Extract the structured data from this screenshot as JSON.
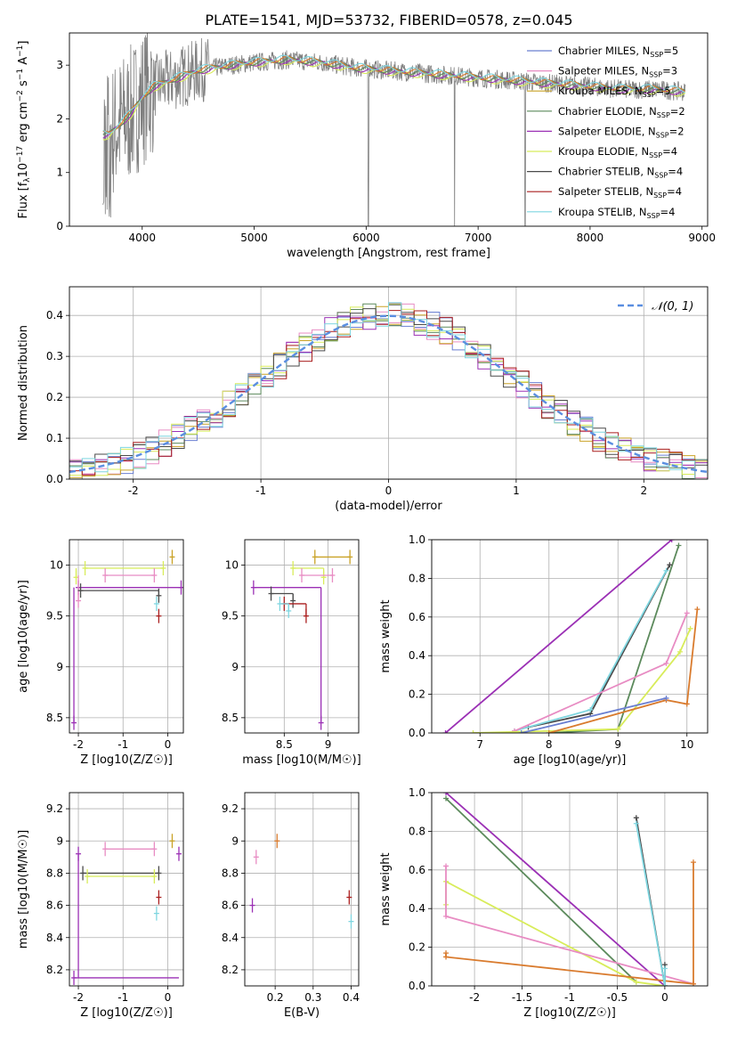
{
  "figure_title": "PLATE=1541, MJD=53732, FIBERID=0578, z=0.045",
  "model_colors": {
    "Chabrier MILES": "#6a7fd1",
    "Salpeter MILES": "#e88cc3",
    "Kroupa MILES": "#c9a227",
    "Chabrier ELODIE": "#5c8a5c",
    "Salpeter ELODIE": "#9b30b5",
    "Kroupa ELODIE": "#d8ec5a",
    "Chabrier STELIB": "#4a4a4a",
    "Salpeter STELIB": "#aa1f1f",
    "Kroupa STELIB": "#7fd6e0",
    "Kroupa MILES line": "#d97b2e"
  },
  "chart_data": [
    {
      "id": "spectrum",
      "type": "line",
      "xlabel": "wavelength [Angstrom, rest frame]",
      "xlim": [
        3350,
        9050
      ],
      "ylim": [
        0,
        3.6
      ],
      "xticks": [
        4000,
        5000,
        6000,
        7000,
        8000,
        9000
      ],
      "yticks": [
        0,
        1,
        2,
        3
      ],
      "grid": false,
      "legend_placement": "top-right",
      "data_color": "#808080",
      "continuum": {
        "x": [
          3650,
          3700,
          3800,
          3900,
          4000,
          4100,
          4300,
          4500,
          4800,
          5000,
          5300,
          5600,
          5900,
          6200,
          6500,
          6800,
          7100,
          7400,
          7700,
          8000,
          8300,
          8600,
          8850
        ],
        "y": [
          1.7,
          1.7,
          1.9,
          2.1,
          2.4,
          2.6,
          2.75,
          2.9,
          3.0,
          3.05,
          3.1,
          3.05,
          2.95,
          2.9,
          2.85,
          2.8,
          2.75,
          2.7,
          2.65,
          2.6,
          2.55,
          2.55,
          2.5
        ]
      },
      "legend": [
        {
          "name": "Chabrier MILES",
          "ssp": "5"
        },
        {
          "name": "Salpeter MILES",
          "ssp": "3"
        },
        {
          "name": "Kroupa MILES",
          "ssp": "5"
        },
        {
          "name": "Chabrier ELODIE",
          "ssp": "2"
        },
        {
          "name": "Salpeter ELODIE",
          "ssp": "2"
        },
        {
          "name": "Kroupa ELODIE",
          "ssp": "4"
        },
        {
          "name": "Chabrier STELIB",
          "ssp": "4"
        },
        {
          "name": "Salpeter STELIB",
          "ssp": "4"
        },
        {
          "name": "Kroupa STELIB",
          "ssp": "4"
        }
      ]
    },
    {
      "id": "residuals",
      "type": "line",
      "xlabel": "(data-model)/error",
      "ylabel": "Normed distribution",
      "xlim": [
        -2.5,
        2.5
      ],
      "ylim": [
        0,
        0.47
      ],
      "xticks": [
        -2,
        -1,
        0,
        1,
        2
      ],
      "yticks": [
        0.0,
        0.1,
        0.2,
        0.3,
        0.4
      ],
      "grid": true,
      "legend_placement": "top-right",
      "gaussian_label": "𝒩(0, 1)",
      "gaussian_color": "#5a8ee0",
      "bin_width": 0.1
    },
    {
      "id": "age_vs_Z",
      "type": "scatter",
      "xlabel": "Z [log10(Z/Z☉)]",
      "ylabel": "age  [log10(age/yr)]",
      "xlim": [
        -2.2,
        0.35
      ],
      "ylim": [
        8.35,
        10.25
      ],
      "xticks": [
        -2,
        -1,
        0
      ],
      "yticks": [
        8.5,
        9.0,
        9.5,
        10.0
      ],
      "grid": true,
      "series": [
        {
          "name": "Salpeter ELODIE",
          "x": [
            -2.0,
            -2.1,
            0.3
          ],
          "y": [
            9.78,
            8.45,
            9.78
          ]
        },
        {
          "name": "Kroupa ELODIE",
          "x": [
            -1.85,
            -2.05,
            -0.1
          ],
          "y": [
            9.97,
            9.88,
            9.97
          ]
        },
        {
          "name": "Salpeter MILES",
          "x": [
            -1.4,
            -2.0,
            -0.3
          ],
          "y": [
            9.9,
            9.65,
            9.9
          ]
        },
        {
          "name": "Chabrier STELIB",
          "x": [
            -1.95,
            -0.2
          ],
          "y": [
            9.75,
            9.7
          ]
        },
        {
          "name": "Kroupa MILES",
          "x": [
            0.1
          ],
          "y": [
            10.08
          ]
        },
        {
          "name": "Salpeter STELIB",
          "x": [
            -0.2
          ],
          "y": [
            9.5
          ]
        },
        {
          "name": "Kroupa STELIB",
          "x": [
            -0.25
          ],
          "y": [
            9.62
          ]
        }
      ]
    },
    {
      "id": "age_vs_mass",
      "type": "scatter",
      "xlabel": "mass [log10(M/M☉)]",
      "ylabel": "",
      "xlim": [
        8.05,
        9.35
      ],
      "ylim": [
        8.35,
        10.25
      ],
      "xticks": [
        8.5,
        9.0
      ],
      "yticks": [
        8.5,
        9.0,
        9.5,
        10.0
      ],
      "grid": true,
      "series": [
        {
          "name": "Salpeter ELODIE",
          "x": [
            8.15,
            8.92
          ],
          "y": [
            9.78,
            8.45
          ]
        },
        {
          "name": "Kroupa ELODIE",
          "x": [
            8.6,
            8.95
          ],
          "y": [
            9.97,
            9.88
          ]
        },
        {
          "name": "Salpeter MILES",
          "x": [
            8.7,
            9.05
          ],
          "y": [
            9.9,
            9.9
          ]
        },
        {
          "name": "Chabrier STELIB",
          "x": [
            8.35,
            8.6
          ],
          "y": [
            9.72,
            9.65
          ]
        },
        {
          "name": "Kroupa MILES",
          "x": [
            8.85,
            9.25
          ],
          "y": [
            10.08,
            10.08
          ]
        },
        {
          "name": "Salpeter STELIB",
          "x": [
            8.5,
            8.75
          ],
          "y": [
            9.62,
            9.5
          ]
        },
        {
          "name": "Kroupa STELIB",
          "x": [
            8.45,
            8.55
          ],
          "y": [
            9.62,
            9.55
          ]
        }
      ]
    },
    {
      "id": "weight_vs_age",
      "type": "line",
      "xlabel": "age  [log10(age/yr)]",
      "ylabel": "mass weight",
      "xlim": [
        6.3,
        10.3
      ],
      "ylim": [
        0,
        1.0
      ],
      "xticks": [
        7,
        8,
        9,
        10
      ],
      "yticks": [
        0.0,
        0.2,
        0.4,
        0.6,
        0.8,
        1.0
      ],
      "grid": true,
      "series": [
        {
          "name": "Salpeter ELODIE",
          "x": [
            6.5,
            9.78
          ],
          "y": [
            0.0,
            1.0
          ]
        },
        {
          "name": "Chabrier ELODIE",
          "x": [
            8.0,
            9.0,
            9.88
          ],
          "y": [
            0.0,
            0.02,
            0.97
          ]
        },
        {
          "name": "Chabrier STELIB",
          "x": [
            7.7,
            8.6,
            9.75
          ],
          "y": [
            0.03,
            0.1,
            0.87
          ]
        },
        {
          "name": "Kroupa STELIB",
          "x": [
            7.5,
            8.6,
            9.7
          ],
          "y": [
            0.01,
            0.12,
            0.84
          ]
        },
        {
          "name": "Salpeter MILES",
          "x": [
            7.5,
            9.7,
            10.0
          ],
          "y": [
            0.01,
            0.36,
            0.62
          ]
        },
        {
          "name": "Kroupa ELODIE",
          "x": [
            6.9,
            9.0,
            9.9,
            10.05
          ],
          "y": [
            0.0,
            0.02,
            0.42,
            0.54
          ]
        },
        {
          "name": "Kroupa MILES line",
          "x": [
            8.0,
            9.7,
            10.0,
            10.15
          ],
          "y": [
            0.0,
            0.17,
            0.15,
            0.64
          ]
        },
        {
          "name": "Chabrier MILES",
          "x": [
            7.6,
            9.7
          ],
          "y": [
            0.0,
            0.18
          ]
        }
      ]
    },
    {
      "id": "mass_vs_Z",
      "type": "scatter",
      "xlabel": "Z [log10(Z/Z☉)]",
      "ylabel": "mass [log10(M/M☉)]",
      "xlim": [
        -2.2,
        0.35
      ],
      "ylim": [
        8.1,
        9.3
      ],
      "xticks": [
        -2,
        -1,
        0
      ],
      "yticks": [
        8.2,
        8.4,
        8.6,
        8.8,
        9.0,
        9.2
      ],
      "grid": true,
      "series": [
        {
          "name": "Salpeter ELODIE",
          "x": [
            -2.1,
            -2.0,
            0.25
          ],
          "y": [
            8.15,
            8.92,
            8.92
          ]
        },
        {
          "name": "Salpeter MILES",
          "x": [
            -1.4,
            -0.3
          ],
          "y": [
            8.95,
            8.95
          ]
        },
        {
          "name": "Chabrier STELIB",
          "x": [
            -1.9,
            -0.2
          ],
          "y": [
            8.8,
            8.8
          ]
        },
        {
          "name": "Kroupa ELODIE",
          "x": [
            -1.8,
            -0.3
          ],
          "y": [
            8.78,
            8.78
          ]
        },
        {
          "name": "Kroupa MILES",
          "x": [
            0.1
          ],
          "y": [
            9.0
          ]
        },
        {
          "name": "Salpeter STELIB",
          "x": [
            -0.2
          ],
          "y": [
            8.65
          ]
        },
        {
          "name": "Kroupa STELIB",
          "x": [
            -0.25
          ],
          "y": [
            8.55
          ]
        }
      ]
    },
    {
      "id": "mass_vs_ebv",
      "type": "scatter",
      "xlabel": "E(B-V)",
      "ylabel": "",
      "xlim": [
        0.12,
        0.42
      ],
      "ylim": [
        8.1,
        9.3
      ],
      "xticks": [
        0.2,
        0.3,
        0.4
      ],
      "yticks": [
        8.2,
        8.4,
        8.6,
        8.8,
        9.0,
        9.2
      ],
      "grid": true,
      "series": [
        {
          "name": "Salpeter ELODIE",
          "x": [
            0.14
          ],
          "y": [
            8.6
          ]
        },
        {
          "name": "Salpeter MILES",
          "x": [
            0.15
          ],
          "y": [
            8.9
          ]
        },
        {
          "name": "Kroupa MILES line",
          "x": [
            0.205
          ],
          "y": [
            9.0
          ]
        },
        {
          "name": "Salpeter STELIB",
          "x": [
            0.395
          ],
          "y": [
            8.65
          ]
        },
        {
          "name": "Kroupa STELIB",
          "x": [
            0.4
          ],
          "y": [
            8.5
          ]
        }
      ]
    },
    {
      "id": "weight_vs_Z",
      "type": "line",
      "xlabel": "Z [log10(Z/Z☉)]",
      "ylabel": "mass weight",
      "xlim": [
        -2.45,
        0.45
      ],
      "ylim": [
        0,
        1.0
      ],
      "xticks": [
        -2.0,
        -1.5,
        -1.0,
        -0.5,
        0.0
      ],
      "yticks": [
        0.0,
        0.2,
        0.4,
        0.6,
        0.8,
        1.0
      ],
      "grid": true,
      "series": [
        {
          "name": "Salpeter ELODIE",
          "x": [
            -2.3,
            0.0
          ],
          "y": [
            1.0,
            0.0
          ]
        },
        {
          "name": "Chabrier ELODIE",
          "x": [
            -2.3,
            -0.3
          ],
          "y": [
            0.97,
            0.02
          ]
        },
        {
          "name": "Kroupa ELODIE",
          "x": [
            -2.3,
            -2.3,
            -0.3,
            0.0
          ],
          "y": [
            0.42,
            0.54,
            0.02,
            0.0
          ]
        },
        {
          "name": "Salpeter MILES",
          "x": [
            -2.3,
            -2.3,
            0.3
          ],
          "y": [
            0.62,
            0.36,
            0.01
          ]
        },
        {
          "name": "Kroupa MILES line",
          "x": [
            -2.3,
            -2.3,
            0.3,
            0.3
          ],
          "y": [
            0.17,
            0.15,
            0.01,
            0.64
          ]
        },
        {
          "name": "Chabrier STELIB",
          "x": [
            -0.3,
            0.0,
            0.0
          ],
          "y": [
            0.87,
            0.0,
            0.11
          ]
        },
        {
          "name": "Kroupa STELIB",
          "x": [
            -0.3,
            0.0,
            0.0
          ],
          "y": [
            0.84,
            0.0,
            0.09
          ]
        }
      ]
    }
  ]
}
